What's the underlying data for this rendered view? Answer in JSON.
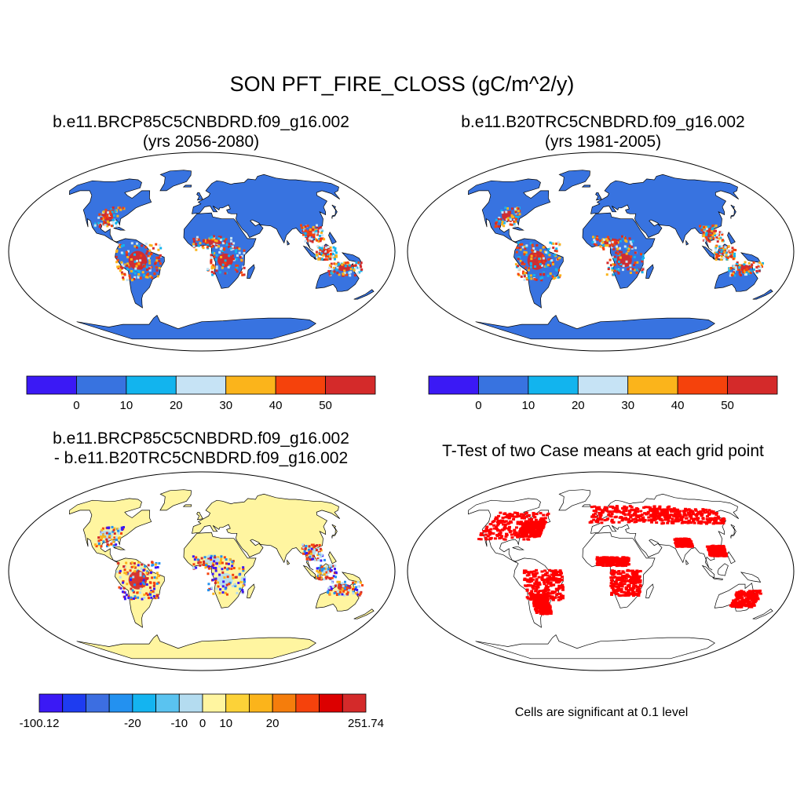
{
  "main_title": "SON PFT_FIRE_CLOSS (gC/m^2/y)",
  "panels": [
    {
      "title": "b.e11.BRCP85C5CNBDRD.f09_g16.002",
      "subtitle": "(yrs 2056-2080)",
      "style": "fire",
      "colorbar": {
        "colors": [
          "#3b19f5",
          "#3873e0",
          "#12b4ee",
          "#c6e3f5",
          "#fbb41b",
          "#f5420c",
          "#d42a2a"
        ],
        "labels": [
          "0",
          "10",
          "20",
          "30",
          "40",
          "50"
        ]
      }
    },
    {
      "title": "b.e11.B20TRC5CNBDRD.f09_g16.002",
      "subtitle": "(yrs 1981-2005)",
      "style": "fire",
      "colorbar": {
        "colors": [
          "#3b19f5",
          "#3873e0",
          "#12b4ee",
          "#c6e3f5",
          "#fbb41b",
          "#f5420c",
          "#d42a2a"
        ],
        "labels": [
          "0",
          "10",
          "20",
          "30",
          "40",
          "50"
        ]
      }
    },
    {
      "title": "b.e11.BRCP85C5CNBDRD.f09_g16.002",
      "subtitle": "- b.e11.B20TRC5CNBDRD.f09_g16.002",
      "style": "diff",
      "colorbar": {
        "colors": [
          "#3b19f5",
          "#1e3cf0",
          "#3c6ee1",
          "#2391f0",
          "#14b4f0",
          "#5ac3f0",
          "#b4dcf0",
          "#fff5a0",
          "#fcd238",
          "#fbb41b",
          "#f57d0c",
          "#f5420c",
          "#dc0000",
          "#d42a2a"
        ],
        "labels": [
          "-100.12",
          "-20",
          "-10",
          "0",
          "10",
          "20",
          "251.74"
        ]
      }
    },
    {
      "title": "T-Test of two Case means at each grid point",
      "subtitle": "",
      "style": "ttest",
      "note": "Cells are significant at 0.1 level"
    }
  ]
}
